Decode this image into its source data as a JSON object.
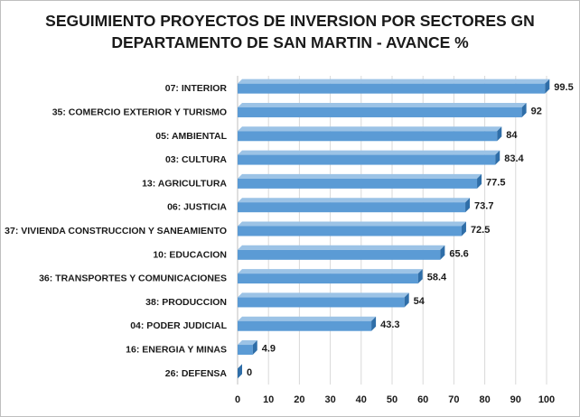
{
  "chart_data": {
    "type": "bar",
    "orientation": "horizontal",
    "title": "SEGUIMIENTO PROYECTOS DE INVERSION POR SECTORES GN",
    "subtitle": "DEPARTAMENTO DE SAN MARTIN - AVANCE %",
    "categories": [
      "07: INTERIOR",
      "35: COMERCIO EXTERIOR Y TURISMO",
      "05: AMBIENTAL",
      "03: CULTURA",
      "13: AGRICULTURA",
      "06: JUSTICIA",
      "37: VIVIENDA CONSTRUCCION Y SANEAMIENTO",
      "10: EDUCACION",
      "36: TRANSPORTES Y COMUNICACIONES",
      "38: PRODUCCION",
      "04: PODER JUDICIAL",
      "16: ENERGIA Y MINAS",
      "26: DEFENSA"
    ],
    "values": [
      99.5,
      92,
      84,
      83.4,
      77.5,
      73.7,
      72.5,
      65.6,
      58.4,
      54,
      43.3,
      4.9,
      0
    ],
    "value_labels": [
      "99.5",
      "92",
      "84",
      "83.4",
      "77.5",
      "73.7",
      "72.5",
      "65.6",
      "58.4",
      "54",
      "43.3",
      "4.9",
      "0"
    ],
    "xlim": [
      0,
      100
    ],
    "x_ticks": [
      "0",
      "10",
      "20",
      "30",
      "40",
      "50",
      "60",
      "70",
      "80",
      "90",
      "100"
    ],
    "grid": true,
    "legend": "none",
    "bar_color": "#5b9bd5",
    "bar_color_dark": "#2f6ea8",
    "bar_color_light": "#9cc3e6"
  }
}
